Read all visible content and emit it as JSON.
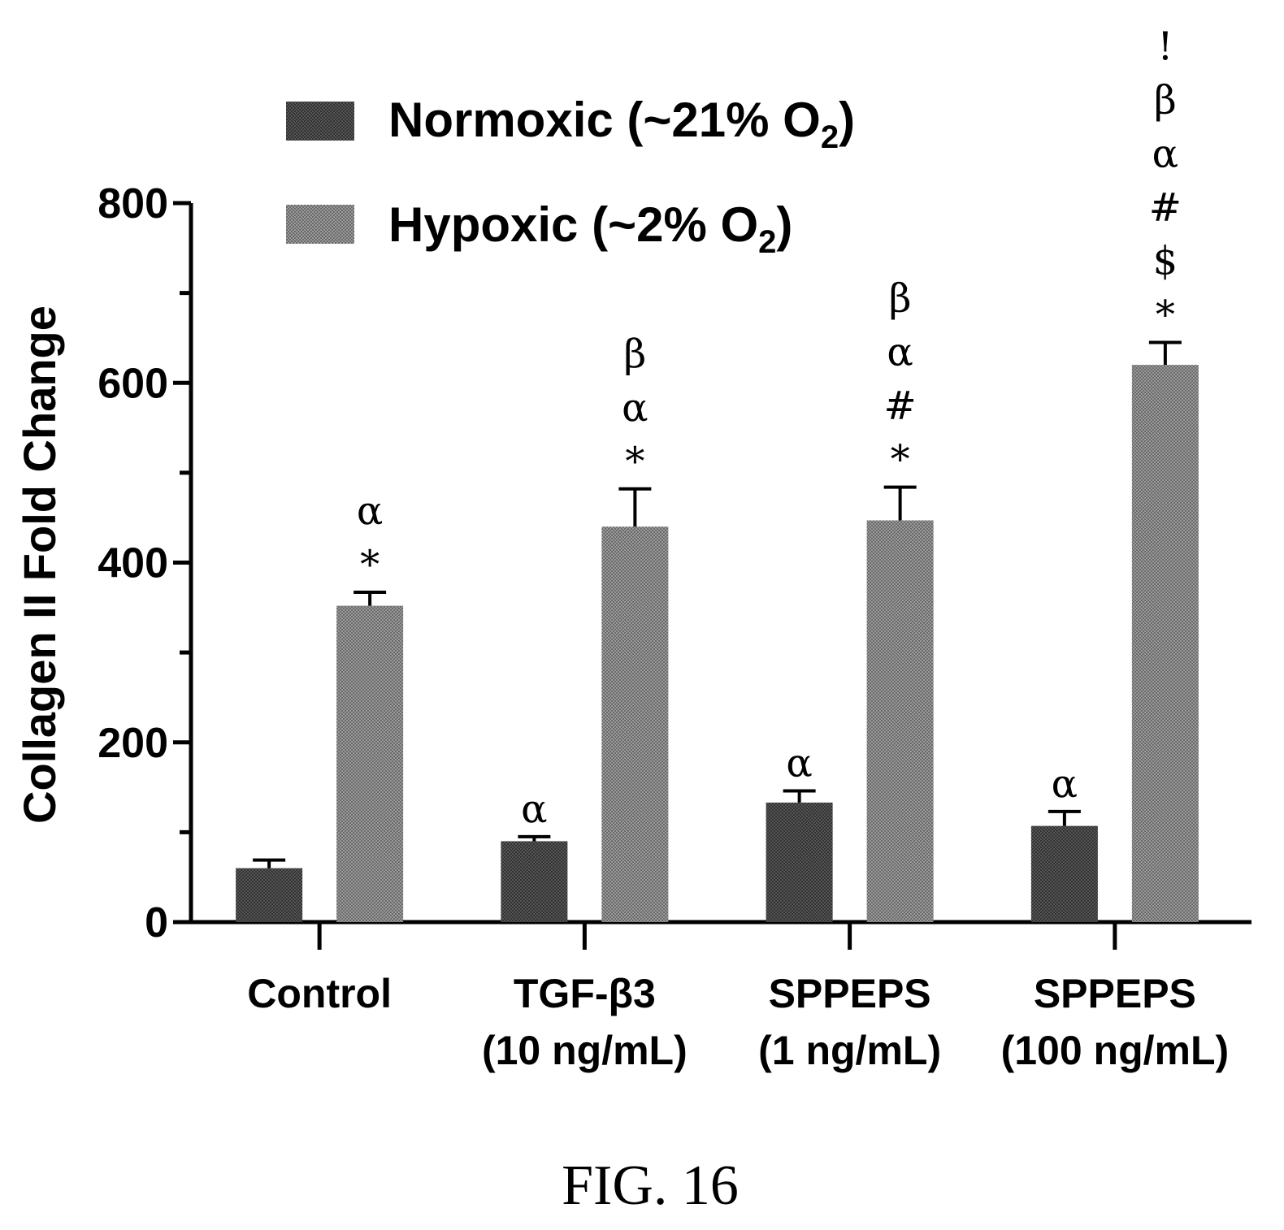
{
  "chart_data": {
    "type": "bar",
    "ylabel": "Collagen II Fold Change",
    "ylim": [
      0,
      800
    ],
    "yticks": [
      0,
      200,
      400,
      600,
      800
    ],
    "categories": [
      [
        "Control"
      ],
      [
        "TGF-β3",
        "(10 ng/mL)"
      ],
      [
        "SPPEPS",
        "(1 ng/mL)"
      ],
      [
        "SPPEPS",
        "(100 ng/mL)"
      ]
    ],
    "series": [
      {
        "name": "Normoxic (~21% O2)",
        "legend_main": "Normoxic (~21% O",
        "legend_sub": "2",
        "legend_tail": ")",
        "color": "#3a3a3a",
        "values": [
          60,
          90,
          133,
          107
        ],
        "errors": [
          9,
          5,
          13,
          16
        ],
        "annotations": [
          [],
          [
            "α"
          ],
          [
            "α"
          ],
          [
            "α"
          ]
        ]
      },
      {
        "name": "Hypoxic (~2% O2)",
        "legend_main": "Hypoxic (~2% O",
        "legend_sub": "2",
        "legend_tail": ")",
        "color": "#7a7a7a",
        "values": [
          352,
          440,
          447,
          620
        ],
        "errors": [
          15,
          42,
          37,
          25
        ],
        "annotations": [
          [
            "*",
            "α"
          ],
          [
            "*",
            "α",
            "β"
          ],
          [
            "*",
            "#",
            "α",
            "β"
          ],
          [
            "*",
            "$",
            "#",
            "α",
            "β",
            "!"
          ]
        ]
      }
    ],
    "legend_position": "top-left",
    "grid": false
  },
  "caption": "FIG. 16"
}
